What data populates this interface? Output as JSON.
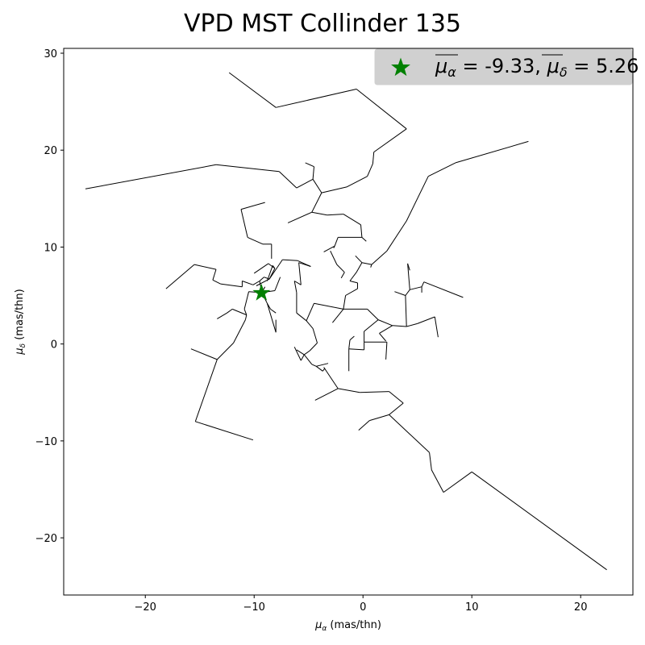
{
  "chart_data": {
    "type": "scatter",
    "title": "VPD MST Collinder 135",
    "xlabel_symbol": "μ",
    "xlabel_sub": "α",
    "xlabel_unit": " (mas/thn)",
    "ylabel_symbol": "μ",
    "ylabel_sub": "δ",
    "ylabel_unit": " (mas/thn)",
    "xlim": [
      -27.5,
      24.8
    ],
    "ylim": [
      -25.9,
      30.5
    ],
    "xticks": [
      -20,
      -10,
      0,
      10,
      20
    ],
    "yticks": [
      -20,
      -10,
      0,
      10,
      20,
      30
    ],
    "xtick_labels": [
      "−20",
      "−10",
      "0",
      "10",
      "20"
    ],
    "ytick_labels": [
      "−20",
      "−10",
      "0",
      "10",
      "20",
      "30"
    ],
    "grid": false,
    "legend": {
      "placement": "top-right",
      "label_mu_a": "μ",
      "label_sub_a": "α",
      "label_val_a": " = -9.33, ",
      "label_mu_d": "μ",
      "label_sub_d": "δ",
      "label_val_d": " = 5.26"
    },
    "mean_point": {
      "x": -9.33,
      "y": 5.26,
      "color": "#008000",
      "marker": "star"
    },
    "edge_color": "#000000",
    "mst_edges": [
      [
        [
          -12.3,
          28.0
        ],
        [
          -8.0,
          24.4
        ]
      ],
      [
        [
          -8.0,
          24.4
        ],
        [
          -0.6,
          26.3
        ]
      ],
      [
        [
          -0.6,
          26.3
        ],
        [
          4.0,
          22.2
        ]
      ],
      [
        [
          4.0,
          22.2
        ],
        [
          1.0,
          19.8
        ]
      ],
      [
        [
          1.0,
          19.8
        ],
        [
          0.9,
          18.6
        ]
      ],
      [
        [
          0.9,
          18.6
        ],
        [
          0.4,
          17.3
        ]
      ],
      [
        [
          0.4,
          17.3
        ],
        [
          -1.5,
          16.2
        ]
      ],
      [
        [
          -1.5,
          16.2
        ],
        [
          -3.8,
          15.6
        ]
      ],
      [
        [
          -3.8,
          15.6
        ],
        [
          -4.6,
          17.0
        ]
      ],
      [
        [
          -4.6,
          17.0
        ],
        [
          -4.5,
          18.3
        ]
      ],
      [
        [
          -4.5,
          18.3
        ],
        [
          -5.3,
          18.7
        ]
      ],
      [
        [
          -4.6,
          17.0
        ],
        [
          -6.1,
          16.1
        ]
      ],
      [
        [
          -6.1,
          16.1
        ],
        [
          -7.7,
          17.8
        ]
      ],
      [
        [
          -7.7,
          17.8
        ],
        [
          -13.5,
          18.5
        ]
      ],
      [
        [
          -13.5,
          18.5
        ],
        [
          -25.5,
          16.0
        ]
      ],
      [
        [
          -3.8,
          15.6
        ],
        [
          -4.7,
          13.6
        ]
      ],
      [
        [
          -4.7,
          13.6
        ],
        [
          -6.9,
          12.5
        ]
      ],
      [
        [
          -4.7,
          13.6
        ],
        [
          -3.3,
          13.3
        ]
      ],
      [
        [
          -3.3,
          13.3
        ],
        [
          -1.8,
          13.4
        ]
      ],
      [
        [
          -1.8,
          13.4
        ],
        [
          -0.2,
          12.3
        ]
      ],
      [
        [
          -0.2,
          12.3
        ],
        [
          -0.1,
          11.0
        ]
      ],
      [
        [
          -0.1,
          11.0
        ],
        [
          0.3,
          10.6
        ]
      ],
      [
        [
          -0.1,
          11.0
        ],
        [
          -2.3,
          11.0
        ]
      ],
      [
        [
          -2.3,
          11.0
        ],
        [
          -2.6,
          10.1
        ]
      ],
      [
        [
          -2.6,
          10.1
        ],
        [
          -2.7,
          9.9
        ]
      ],
      [
        [
          -2.6,
          10.1
        ],
        [
          -3.6,
          9.5
        ]
      ],
      [
        [
          -3.0,
          9.6
        ],
        [
          -2.4,
          8.2
        ]
      ],
      [
        [
          -2.4,
          8.2
        ],
        [
          -1.7,
          7.4
        ]
      ],
      [
        [
          -1.7,
          7.4
        ],
        [
          -2.0,
          6.8
        ]
      ],
      [
        [
          15.2,
          20.9
        ],
        [
          8.5,
          18.7
        ]
      ],
      [
        [
          8.5,
          18.7
        ],
        [
          6.0,
          17.3
        ]
      ],
      [
        [
          6.0,
          17.3
        ],
        [
          4.0,
          12.7
        ]
      ],
      [
        [
          4.0,
          12.7
        ],
        [
          2.2,
          9.6
        ]
      ],
      [
        [
          2.2,
          9.6
        ],
        [
          0.8,
          8.2
        ]
      ],
      [
        [
          0.8,
          8.2
        ],
        [
          -0.1,
          8.4
        ]
      ],
      [
        [
          -0.1,
          8.4
        ],
        [
          -0.7,
          9.1
        ]
      ],
      [
        [
          0.8,
          8.2
        ],
        [
          0.7,
          7.9
        ]
      ],
      [
        [
          -0.1,
          8.4
        ],
        [
          -0.6,
          7.4
        ]
      ],
      [
        [
          -0.6,
          7.4
        ],
        [
          -1.2,
          6.5
        ]
      ],
      [
        [
          -1.2,
          6.5
        ],
        [
          -0.5,
          6.3
        ]
      ],
      [
        [
          -0.5,
          6.3
        ],
        [
          -0.5,
          5.7
        ]
      ],
      [
        [
          -0.5,
          5.7
        ],
        [
          -1.6,
          5.0
        ]
      ],
      [
        [
          -1.6,
          5.0
        ],
        [
          -1.8,
          3.6
        ]
      ],
      [
        [
          -1.8,
          3.6
        ],
        [
          -2.8,
          2.2
        ]
      ],
      [
        [
          -1.8,
          3.6
        ],
        [
          0.4,
          3.6
        ]
      ],
      [
        [
          0.4,
          3.6
        ],
        [
          1.4,
          2.5
        ]
      ],
      [
        [
          1.4,
          2.5
        ],
        [
          2.7,
          1.9
        ]
      ],
      [
        [
          2.7,
          1.9
        ],
        [
          1.5,
          1.1
        ]
      ],
      [
        [
          1.5,
          1.1
        ],
        [
          2.1,
          0.3
        ]
      ],
      [
        [
          1.4,
          2.5
        ],
        [
          0.1,
          1.3
        ]
      ],
      [
        [
          0.1,
          1.3
        ],
        [
          0.1,
          0.2
        ]
      ],
      [
        [
          0.1,
          0.2
        ],
        [
          0.1,
          -0.6
        ]
      ],
      [
        [
          0.1,
          -0.6
        ],
        [
          -1.3,
          -0.5
        ]
      ],
      [
        [
          -1.3,
          -0.5
        ],
        [
          -1.2,
          0.4
        ]
      ],
      [
        [
          -1.2,
          0.4
        ],
        [
          -0.8,
          0.8
        ]
      ],
      [
        [
          -1.3,
          -0.5
        ],
        [
          -1.3,
          -2.8
        ]
      ],
      [
        [
          0.1,
          0.2
        ],
        [
          2.2,
          0.2
        ]
      ],
      [
        [
          2.2,
          0.2
        ],
        [
          2.1,
          -1.6
        ]
      ],
      [
        [
          2.7,
          1.9
        ],
        [
          4.0,
          1.8
        ]
      ],
      [
        [
          4.0,
          1.8
        ],
        [
          3.9,
          5.0
        ]
      ],
      [
        [
          3.9,
          5.0
        ],
        [
          4.3,
          5.6
        ]
      ],
      [
        [
          4.3,
          5.6
        ],
        [
          4.1,
          8.3
        ]
      ],
      [
        [
          4.1,
          8.3
        ],
        [
          4.3,
          7.6
        ]
      ],
      [
        [
          4.3,
          5.6
        ],
        [
          5.4,
          5.9
        ]
      ],
      [
        [
          5.4,
          5.9
        ],
        [
          5.6,
          6.4
        ]
      ],
      [
        [
          5.6,
          6.4
        ],
        [
          9.2,
          4.8
        ]
      ],
      [
        [
          5.4,
          5.9
        ],
        [
          5.4,
          5.3
        ]
      ],
      [
        [
          3.9,
          5.0
        ],
        [
          2.9,
          5.4
        ]
      ],
      [
        [
          4.0,
          1.8
        ],
        [
          5.0,
          2.1
        ]
      ],
      [
        [
          5.0,
          2.1
        ],
        [
          6.6,
          2.8
        ]
      ],
      [
        [
          6.6,
          2.8
        ],
        [
          6.9,
          0.7
        ]
      ],
      [
        [
          -1.8,
          3.6
        ],
        [
          -4.5,
          4.2
        ]
      ],
      [
        [
          -4.5,
          4.2
        ],
        [
          -5.2,
          2.4
        ]
      ],
      [
        [
          -5.2,
          2.4
        ],
        [
          -4.6,
          1.6
        ]
      ],
      [
        [
          -4.6,
          1.6
        ],
        [
          -4.2,
          0.1
        ]
      ],
      [
        [
          -4.2,
          0.1
        ],
        [
          -4.9,
          -0.7
        ]
      ],
      [
        [
          -4.9,
          -0.7
        ],
        [
          -5.4,
          -1.1
        ]
      ],
      [
        [
          -5.4,
          -1.1
        ],
        [
          -6.1,
          -0.6
        ]
      ],
      [
        [
          -5.4,
          -1.1
        ],
        [
          -5.7,
          -1.7
        ]
      ],
      [
        [
          -5.7,
          -1.7
        ],
        [
          -6.3,
          -0.3
        ]
      ],
      [
        [
          -5.4,
          -1.1
        ],
        [
          -4.7,
          -2.1
        ]
      ],
      [
        [
          -4.7,
          -2.1
        ],
        [
          -4.3,
          -2.3
        ]
      ],
      [
        [
          -4.3,
          -2.3
        ],
        [
          -3.2,
          -2.0
        ]
      ],
      [
        [
          -4.3,
          -2.3
        ],
        [
          -3.7,
          -2.8
        ]
      ],
      [
        [
          -3.7,
          -2.8
        ],
        [
          -3.5,
          -2.5
        ]
      ],
      [
        [
          -5.2,
          2.4
        ],
        [
          -6.1,
          3.2
        ]
      ],
      [
        [
          -6.1,
          3.2
        ],
        [
          -6.1,
          5.3
        ]
      ],
      [
        [
          -6.1,
          5.3
        ],
        [
          -6.3,
          6.5
        ]
      ],
      [
        [
          -6.3,
          6.5
        ],
        [
          -5.7,
          6.1
        ]
      ],
      [
        [
          -5.7,
          6.1
        ],
        [
          -5.9,
          8.4
        ]
      ],
      [
        [
          -5.9,
          8.4
        ],
        [
          -4.8,
          8.0
        ]
      ],
      [
        [
          -4.8,
          8.0
        ],
        [
          -6.0,
          8.6
        ]
      ],
      [
        [
          -6.0,
          8.6
        ],
        [
          -7.4,
          8.7
        ]
      ],
      [
        [
          -7.4,
          8.7
        ],
        [
          -7.7,
          8.2
        ]
      ],
      [
        [
          -7.7,
          8.2
        ],
        [
          -8.6,
          6.7
        ]
      ],
      [
        [
          -8.6,
          6.7
        ],
        [
          -9.1,
          6.9
        ]
      ],
      [
        [
          -9.1,
          6.9
        ],
        [
          -9.5,
          6.5
        ]
      ],
      [
        [
          -9.5,
          6.5
        ],
        [
          -10.1,
          6.1
        ]
      ],
      [
        [
          -10.1,
          6.1
        ],
        [
          -11.1,
          6.5
        ]
      ],
      [
        [
          -11.1,
          6.5
        ],
        [
          -11.1,
          5.9
        ]
      ],
      [
        [
          -11.1,
          5.9
        ],
        [
          -13.1,
          6.2
        ]
      ],
      [
        [
          -13.1,
          6.2
        ],
        [
          -13.8,
          6.6
        ]
      ],
      [
        [
          -13.8,
          6.6
        ],
        [
          -13.5,
          7.7
        ]
      ],
      [
        [
          -13.5,
          7.7
        ],
        [
          -15.5,
          8.2
        ]
      ],
      [
        [
          -15.5,
          8.2
        ],
        [
          -18.1,
          5.7
        ]
      ],
      [
        [
          -9.5,
          6.5
        ],
        [
          -9.3,
          5.3
        ]
      ],
      [
        [
          -9.3,
          5.3
        ],
        [
          -8.1,
          5.5
        ]
      ],
      [
        [
          -9.3,
          5.3
        ],
        [
          -8.8,
          4.2
        ]
      ],
      [
        [
          -8.8,
          4.2
        ],
        [
          -8.5,
          3.6
        ]
      ],
      [
        [
          -8.5,
          3.6
        ],
        [
          -8.0,
          3.2
        ]
      ],
      [
        [
          -9.3,
          5.3
        ],
        [
          -9.0,
          5.9
        ]
      ],
      [
        [
          -9.3,
          5.3
        ],
        [
          -10.5,
          5.4
        ]
      ],
      [
        [
          -10.5,
          5.4
        ],
        [
          -10.9,
          3.6
        ]
      ],
      [
        [
          -10.9,
          3.6
        ],
        [
          -10.7,
          3.0
        ]
      ],
      [
        [
          -10.7,
          3.0
        ],
        [
          -12.0,
          3.6
        ]
      ],
      [
        [
          -12.0,
          3.6
        ],
        [
          -12.5,
          3.2
        ]
      ],
      [
        [
          -12.5,
          3.2
        ],
        [
          -13.4,
          2.6
        ]
      ],
      [
        [
          -10.7,
          3.0
        ],
        [
          -10.8,
          2.5
        ]
      ],
      [
        [
          -10.8,
          2.5
        ],
        [
          -11.9,
          0.1
        ]
      ],
      [
        [
          -11.9,
          0.1
        ],
        [
          -13.4,
          -1.6
        ]
      ],
      [
        [
          -13.4,
          -1.6
        ],
        [
          -15.8,
          -0.5
        ]
      ],
      [
        [
          -13.4,
          -1.6
        ],
        [
          -15.4,
          -8.0
        ]
      ],
      [
        [
          -15.4,
          -8.0
        ],
        [
          -10.1,
          -9.9
        ]
      ],
      [
        [
          -8.8,
          4.2
        ],
        [
          -8.0,
          1.2
        ]
      ],
      [
        [
          -8.0,
          1.2
        ],
        [
          -8.0,
          2.5
        ]
      ],
      [
        [
          -8.6,
          6.7
        ],
        [
          -9.8,
          6.0
        ]
      ],
      [
        [
          -8.1,
          5.5
        ],
        [
          -7.6,
          6.9
        ]
      ],
      [
        [
          -8.6,
          6.7
        ],
        [
          -8.1,
          7.8
        ]
      ],
      [
        [
          -8.1,
          7.8
        ],
        [
          -8.7,
          8.3
        ]
      ],
      [
        [
          -8.7,
          8.3
        ],
        [
          -10.0,
          7.3
        ]
      ],
      [
        [
          -8.1,
          7.8
        ],
        [
          -8.3,
          8.1
        ]
      ],
      [
        [
          -8.3,
          8.1
        ],
        [
          -8.8,
          6.5
        ]
      ],
      [
        [
          -11.2,
          13.9
        ],
        [
          -10.6,
          11.0
        ]
      ],
      [
        [
          -10.6,
          11.0
        ],
        [
          -9.2,
          10.3
        ]
      ],
      [
        [
          -9.2,
          10.3
        ],
        [
          -8.4,
          10.3
        ]
      ],
      [
        [
          -8.4,
          10.3
        ],
        [
          -8.4,
          8.8
        ]
      ],
      [
        [
          -11.2,
          13.9
        ],
        [
          -9.0,
          14.6
        ]
      ],
      [
        [
          -2.3,
          -4.6
        ],
        [
          -4.4,
          -5.8
        ]
      ],
      [
        [
          -2.3,
          -4.6
        ],
        [
          -0.3,
          -5.0
        ]
      ],
      [
        [
          -0.3,
          -5.0
        ],
        [
          2.4,
          -4.9
        ]
      ],
      [
        [
          2.4,
          -4.9
        ],
        [
          3.7,
          -6.1
        ]
      ],
      [
        [
          3.7,
          -6.1
        ],
        [
          2.4,
          -7.3
        ]
      ],
      [
        [
          2.4,
          -7.3
        ],
        [
          0.6,
          -7.9
        ]
      ],
      [
        [
          0.6,
          -7.9
        ],
        [
          -0.4,
          -8.9
        ]
      ],
      [
        [
          2.4,
          -7.3
        ],
        [
          6.1,
          -11.2
        ]
      ],
      [
        [
          6.1,
          -11.2
        ],
        [
          6.3,
          -13.0
        ]
      ],
      [
        [
          6.3,
          -13.0
        ],
        [
          7.4,
          -15.3
        ]
      ],
      [
        [
          7.4,
          -15.3
        ],
        [
          10.0,
          -13.2
        ]
      ],
      [
        [
          10.0,
          -13.2
        ],
        [
          22.4,
          -23.3
        ]
      ],
      [
        [
          -3.6,
          -2.4
        ],
        [
          -2.3,
          -4.6
        ]
      ]
    ]
  }
}
